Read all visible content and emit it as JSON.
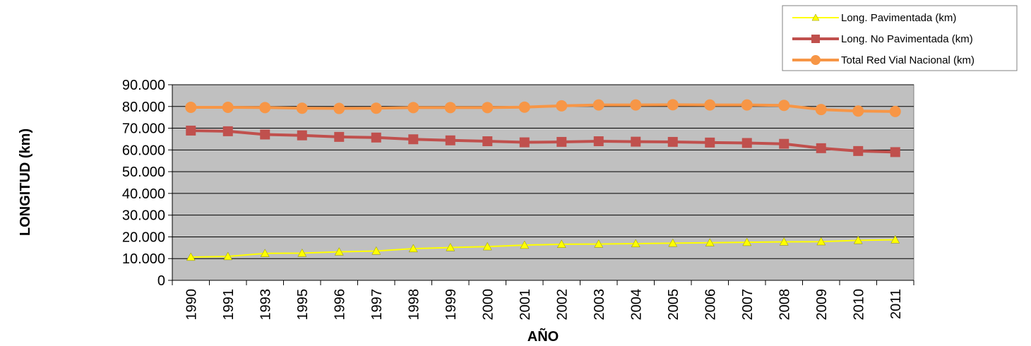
{
  "chart_data": {
    "type": "line",
    "title": "",
    "xlabel": "AÑO",
    "ylabel": "LONGITUD (km)",
    "ylim": [
      0,
      90000
    ],
    "yticks": [
      0,
      10000,
      20000,
      30000,
      40000,
      50000,
      60000,
      70000,
      80000,
      90000
    ],
    "ytick_labels": [
      "0",
      "10.000",
      "20.000",
      "30.000",
      "40.000",
      "50.000",
      "60.000",
      "70.000",
      "80.000",
      "90.000"
    ],
    "grid": true,
    "legend_position": "top-right",
    "categories": [
      "1990",
      "1991",
      "1993",
      "1995",
      "1996",
      "1997",
      "1998",
      "1999",
      "2000",
      "2001",
      "2002",
      "2003",
      "2004",
      "2005",
      "2006",
      "2007",
      "2008",
      "2009",
      "2010",
      "2011"
    ],
    "series": [
      {
        "name": "Long. Pavimentada (km)",
        "color": "#FFFF00",
        "marker": "triangle",
        "values": [
          10700,
          11000,
          12400,
          12500,
          13100,
          13500,
          14600,
          15100,
          15500,
          16200,
          16600,
          16700,
          16900,
          17100,
          17300,
          17500,
          17700,
          17800,
          18400,
          18700
        ]
      },
      {
        "name": "Long. No Pavimentada (km)",
        "color": "#C0504D",
        "marker": "square",
        "values": [
          68900,
          68600,
          67100,
          66700,
          66000,
          65700,
          64900,
          64400,
          64000,
          63500,
          63700,
          64000,
          63800,
          63700,
          63400,
          63200,
          62800,
          60800,
          59500,
          59000
        ]
      },
      {
        "name": "Total Red Vial Nacional (km)",
        "color": "#F79646",
        "marker": "circle",
        "values": [
          79600,
          79600,
          79500,
          79200,
          79100,
          79200,
          79500,
          79500,
          79500,
          79700,
          80300,
          80700,
          80700,
          80800,
          80700,
          80700,
          80500,
          78600,
          77900,
          77700
        ]
      }
    ]
  }
}
